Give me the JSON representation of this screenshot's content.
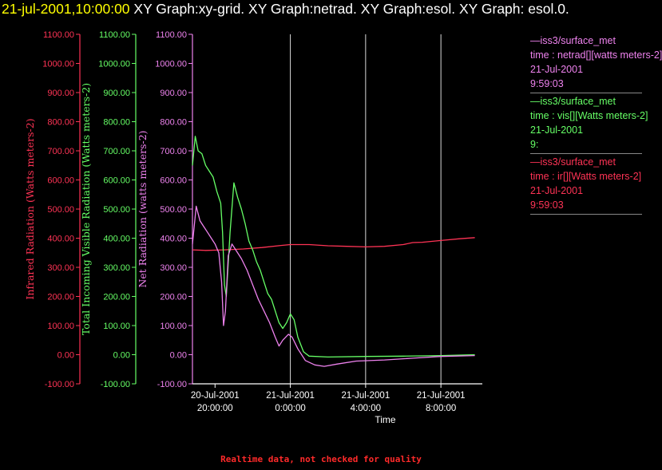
{
  "header": {
    "timestamp": "21-jul-2001,10:00:00",
    "graphs_text": " XY Graph:xy-grid.  XY Graph:netrad.  XY Graph:esol.  XY Graph: esol.0."
  },
  "legend": [
    {
      "station": "—iss3/surface_met",
      "variable": "time : netrad[][watts meters-2]",
      "date": "21-Jul-2001",
      "time": "9:59:03",
      "color": "#ee82ee"
    },
    {
      "station": "—iss3/surface_met",
      "variable": "time : vis[][Watts meters-2]",
      "date": "21-Jul-2001",
      "time": "9:",
      "color": "#66ff66"
    },
    {
      "station": "—iss3/surface_met",
      "variable": "time : ir[][Watts meters-2]",
      "date": "21-Jul-2001",
      "time": "9:59:03",
      "color": "#ff3355"
    }
  ],
  "footer": "Realtime data, not checked for quality",
  "chart_data": {
    "type": "line",
    "xlabel": "Time",
    "x_ticks": [
      {
        "h": 0,
        "date": "20-Jul-2001",
        "time": "20:00:00"
      },
      {
        "h": 4,
        "date": "21-Jul-2001",
        "time": "0:00:00"
      },
      {
        "h": 8,
        "date": "21-Jul-2001",
        "time": "4:00:00"
      },
      {
        "h": 12,
        "date": "21-Jul-2001",
        "time": "8:00:00"
      }
    ],
    "x_range_hours_from_start": [
      -1.2,
      14.2
    ],
    "grid": "vertical lines at x ticks",
    "axes": [
      {
        "id": "ir",
        "label": "Infrared Radiation (Watts meters-2)",
        "color": "#ff3355",
        "ylim": [
          -100,
          1100
        ]
      },
      {
        "id": "vis",
        "label": "Total Incoming Visible Radiation (Watts meters-2)",
        "color": "#66ff66",
        "ylim": [
          -100,
          1100
        ]
      },
      {
        "id": "net",
        "label": "Net Radiation (watts meters-2)",
        "color": "#ee82ee",
        "ylim": [
          -100,
          1100
        ]
      }
    ],
    "y_ticks": [
      -100,
      0,
      100,
      200,
      300,
      400,
      500,
      600,
      700,
      800,
      900,
      1000,
      1100
    ],
    "y_tick_labels": [
      "-100.00",
      "0.00",
      "100.00",
      "200.00",
      "300.00",
      "400.00",
      "500.00",
      "600.00",
      "700.00",
      "800.00",
      "900.00",
      "1000.00",
      "1100.00"
    ],
    "series": [
      {
        "axis": "ir",
        "color": "#ff3355",
        "points": [
          [
            -1.2,
            360
          ],
          [
            -0.5,
            358
          ],
          [
            0.5,
            360
          ],
          [
            1.5,
            363
          ],
          [
            2.5,
            368
          ],
          [
            3.5,
            375
          ],
          [
            4,
            378
          ],
          [
            5,
            378
          ],
          [
            6,
            374
          ],
          [
            7,
            372
          ],
          [
            8,
            370
          ],
          [
            9,
            372
          ],
          [
            10,
            378
          ],
          [
            10.5,
            385
          ],
          [
            11,
            386
          ],
          [
            12,
            392
          ],
          [
            13,
            398
          ],
          [
            13.8,
            402
          ]
        ]
      },
      {
        "axis": "vis",
        "color": "#66ff66",
        "points": [
          [
            -1.2,
            650
          ],
          [
            -1.05,
            750
          ],
          [
            -0.9,
            700
          ],
          [
            -0.7,
            690
          ],
          [
            -0.5,
            650
          ],
          [
            -0.3,
            630
          ],
          [
            -0.1,
            610
          ],
          [
            0.1,
            560
          ],
          [
            0.3,
            520
          ],
          [
            0.4,
            420
          ],
          [
            0.5,
            240
          ],
          [
            0.6,
            200
          ],
          [
            0.8,
            420
          ],
          [
            1.0,
            590
          ],
          [
            1.2,
            540
          ],
          [
            1.4,
            500
          ],
          [
            1.6,
            450
          ],
          [
            1.8,
            390
          ],
          [
            2.0,
            360
          ],
          [
            2.2,
            320
          ],
          [
            2.4,
            290
          ],
          [
            2.6,
            250
          ],
          [
            2.8,
            210
          ],
          [
            3.0,
            190
          ],
          [
            3.2,
            150
          ],
          [
            3.4,
            110
          ],
          [
            3.6,
            90
          ],
          [
            3.8,
            110
          ],
          [
            4.0,
            140
          ],
          [
            4.2,
            120
          ],
          [
            4.4,
            60
          ],
          [
            4.7,
            10
          ],
          [
            5.0,
            -5
          ],
          [
            6,
            -8
          ],
          [
            8,
            -6
          ],
          [
            10,
            -5
          ],
          [
            12,
            -3
          ],
          [
            13.8,
            0
          ]
        ]
      },
      {
        "axis": "net",
        "color": "#ee82ee",
        "points": [
          [
            -1.2,
            380
          ],
          [
            -1.0,
            510
          ],
          [
            -0.8,
            460
          ],
          [
            -0.6,
            440
          ],
          [
            -0.4,
            420
          ],
          [
            -0.2,
            400
          ],
          [
            0,
            380
          ],
          [
            0.2,
            350
          ],
          [
            0.35,
            250
          ],
          [
            0.45,
            100
          ],
          [
            0.55,
            150
          ],
          [
            0.7,
            340
          ],
          [
            0.9,
            380
          ],
          [
            1.1,
            360
          ],
          [
            1.4,
            330
          ],
          [
            1.7,
            290
          ],
          [
            2.0,
            240
          ],
          [
            2.3,
            190
          ],
          [
            2.6,
            150
          ],
          [
            2.9,
            110
          ],
          [
            3.2,
            60
          ],
          [
            3.4,
            30
          ],
          [
            3.6,
            50
          ],
          [
            3.9,
            70
          ],
          [
            4.1,
            60
          ],
          [
            4.4,
            20
          ],
          [
            4.8,
            -20
          ],
          [
            5.3,
            -35
          ],
          [
            5.8,
            -40
          ],
          [
            6.5,
            -32
          ],
          [
            7.5,
            -22
          ],
          [
            9,
            -18
          ],
          [
            10.5,
            -12
          ],
          [
            12,
            -6
          ],
          [
            13.8,
            -3
          ]
        ]
      }
    ]
  }
}
